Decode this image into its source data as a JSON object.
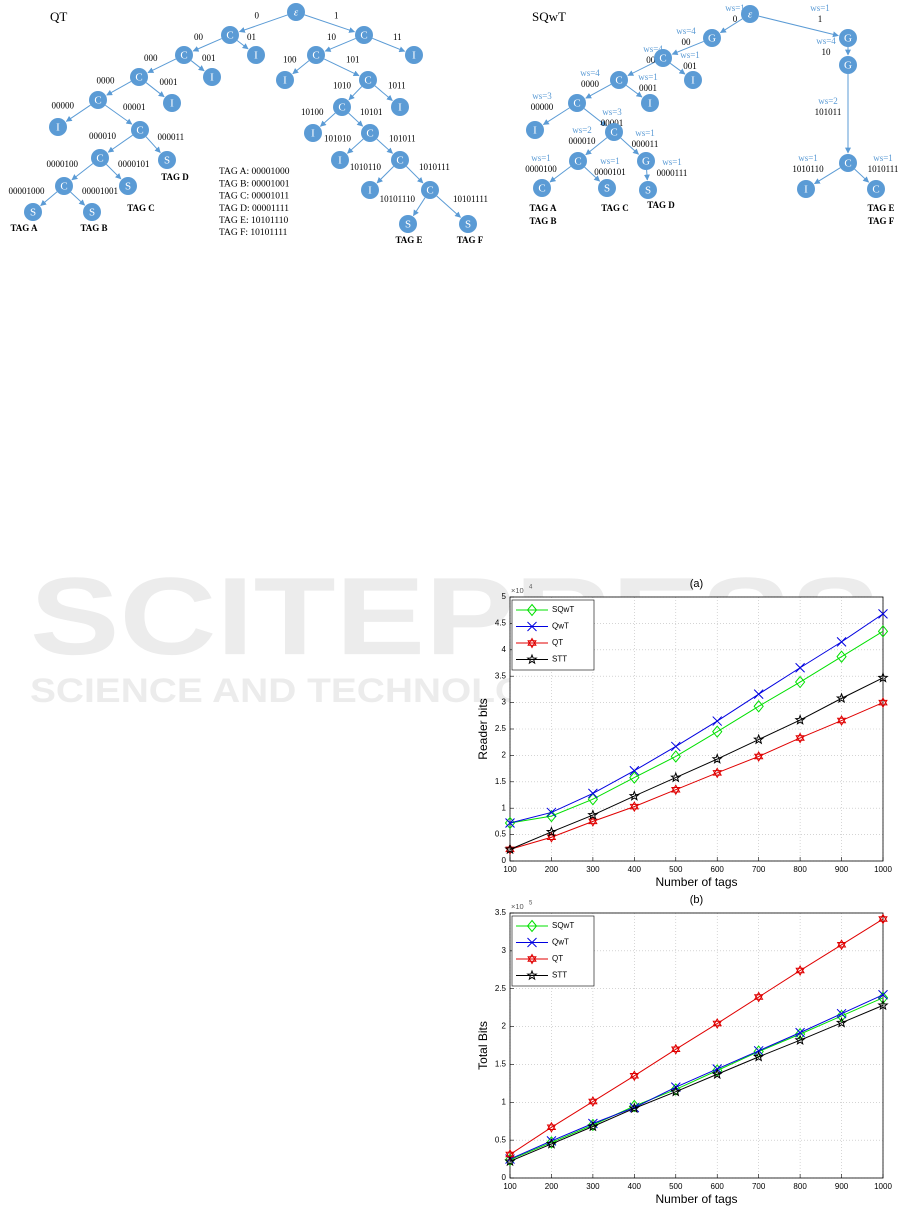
{
  "diagrams": [
    {
      "title": "QT",
      "nodes": [
        "ε",
        "C",
        "C",
        "C",
        "I",
        "C",
        "I",
        "C",
        "I",
        "C",
        "I",
        "I",
        "C",
        "I",
        "C",
        "C",
        "S",
        "C",
        "I",
        "C",
        "S",
        "I",
        "C",
        "S",
        "S",
        "I",
        "C",
        "I",
        "C",
        "S",
        "S"
      ],
      "edge_labels": [
        "0",
        "1",
        "00",
        "01",
        "000",
        "001",
        "10",
        "11",
        "0000",
        "0001",
        "00000",
        "00001",
        "100",
        "101",
        "000010",
        "000011",
        "1010",
        "1011",
        "0000100",
        "0000101",
        "10100",
        "10101",
        "00001000",
        "00001001",
        "101010",
        "101011",
        "1010110",
        "1010111",
        "10101110",
        "10101111"
      ],
      "tags": [
        "TAG A",
        "TAG B",
        "TAG C",
        "TAG D",
        "TAG E",
        "TAG F"
      ],
      "tag_list": [
        "TAG A: 00001000",
        "TAG B: 00001001",
        "TAG C: 00001011",
        "TAG D: 00001111",
        "TAG E: 10101110",
        "TAG F: 10101111"
      ]
    },
    {
      "title": "SQwT",
      "nodes": [
        "ε",
        "G",
        "G",
        "C",
        "I",
        "C",
        "I",
        "C",
        "C",
        "I",
        "C",
        "G",
        "C",
        "S",
        "S",
        "G",
        "C",
        "I",
        "C"
      ],
      "edge_labels": [
        [
          "ws=1",
          "0"
        ],
        [
          "ws=1",
          "1"
        ],
        [
          "ws=4",
          "00"
        ],
        [
          "ws=4",
          "10"
        ],
        [
          "ws=4",
          "000"
        ],
        [
          "ws=1",
          "001"
        ],
        [
          "ws=4",
          "0000"
        ],
        [
          "ws=1",
          "0001"
        ],
        [
          "ws=3",
          "00000"
        ],
        [
          "ws=3",
          "00001"
        ],
        [
          "ws=2",
          "000010"
        ],
        [
          "ws=1",
          "000011"
        ],
        [
          "ws=1",
          "0000100"
        ],
        [
          "ws=1",
          "0000101"
        ],
        [
          "ws=1",
          "0000111"
        ],
        [
          "ws=2",
          "101011"
        ],
        [
          "ws=1",
          "1010110"
        ],
        [
          "ws=1",
          "1010111"
        ]
      ],
      "tags": [
        "TAG A",
        "TAG B",
        "TAG C",
        "TAG D",
        "TAG E",
        "TAG F"
      ]
    }
  ],
  "watermark": {
    "line1": "SCITEPRESS",
    "line2": "SCIENCE AND TECHNOLOGY PUBLICATIONS"
  },
  "chart_data": [
    {
      "type": "line",
      "title": "(a)",
      "x_label": "Number of tags",
      "y_label": "Reader bits",
      "y_multiplier": {
        "base": "×10",
        "exponent": "4"
      },
      "x": [
        100,
        200,
        300,
        400,
        500,
        600,
        700,
        800,
        900,
        1000
      ],
      "xlim": [
        100,
        1000
      ],
      "xticks": [
        100,
        200,
        300,
        400,
        500,
        600,
        700,
        800,
        900,
        1000
      ],
      "ylim": [
        0,
        5
      ],
      "yticks": [
        0,
        0.5,
        1,
        1.5,
        2,
        2.5,
        3,
        3.5,
        4,
        4.5,
        5
      ],
      "grid": true,
      "legend": "upper left",
      "series": [
        {
          "name": "SQwT",
          "color": "#00e000",
          "marker": "diamond",
          "values": [
            0.72,
            0.85,
            1.17,
            1.58,
            1.98,
            2.45,
            2.93,
            3.39,
            3.87,
            4.35
          ]
        },
        {
          "name": "QwT",
          "color": "#0000e0",
          "marker": "x",
          "values": [
            0.72,
            0.92,
            1.28,
            1.71,
            2.17,
            2.65,
            3.16,
            3.66,
            4.15,
            4.68
          ]
        },
        {
          "name": "QT",
          "color": "#e00000",
          "marker": "hexagram",
          "values": [
            0.22,
            0.45,
            0.75,
            1.03,
            1.35,
            1.67,
            1.98,
            2.33,
            2.66,
            3.0
          ]
        },
        {
          "name": "STT",
          "color": "#000000",
          "marker": "pentagram",
          "values": [
            0.22,
            0.55,
            0.87,
            1.23,
            1.58,
            1.93,
            2.3,
            2.67,
            3.08,
            3.47
          ]
        }
      ]
    },
    {
      "type": "line",
      "title": "(b)",
      "x_label": "Number of tags",
      "y_label": "Total Bits",
      "y_multiplier": {
        "base": "×10",
        "exponent": "5"
      },
      "x": [
        100,
        200,
        300,
        400,
        500,
        600,
        700,
        800,
        900,
        1000
      ],
      "xlim": [
        100,
        1000
      ],
      "xticks": [
        100,
        200,
        300,
        400,
        500,
        600,
        700,
        800,
        900,
        1000
      ],
      "ylim": [
        0,
        3.5
      ],
      "yticks": [
        0,
        0.5,
        1,
        1.5,
        2,
        2.5,
        3,
        3.5
      ],
      "grid": true,
      "legend": "upper left",
      "series": [
        {
          "name": "SQwT",
          "color": "#00e000",
          "marker": "diamond",
          "values": [
            0.24,
            0.47,
            0.7,
            0.95,
            1.17,
            1.42,
            1.67,
            1.9,
            2.14,
            2.38
          ]
        },
        {
          "name": "QwT",
          "color": "#0000e0",
          "marker": "x",
          "values": [
            0.25,
            0.49,
            0.72,
            0.93,
            1.2,
            1.44,
            1.68,
            1.92,
            2.17,
            2.42
          ]
        },
        {
          "name": "QT",
          "color": "#e00000",
          "marker": "hexagram",
          "values": [
            0.31,
            0.67,
            1.01,
            1.35,
            1.7,
            2.04,
            2.39,
            2.74,
            3.08,
            3.42
          ]
        },
        {
          "name": "STT",
          "color": "#000000",
          "marker": "pentagram",
          "values": [
            0.22,
            0.45,
            0.68,
            0.92,
            1.14,
            1.37,
            1.6,
            1.82,
            2.05,
            2.28
          ]
        }
      ]
    }
  ]
}
